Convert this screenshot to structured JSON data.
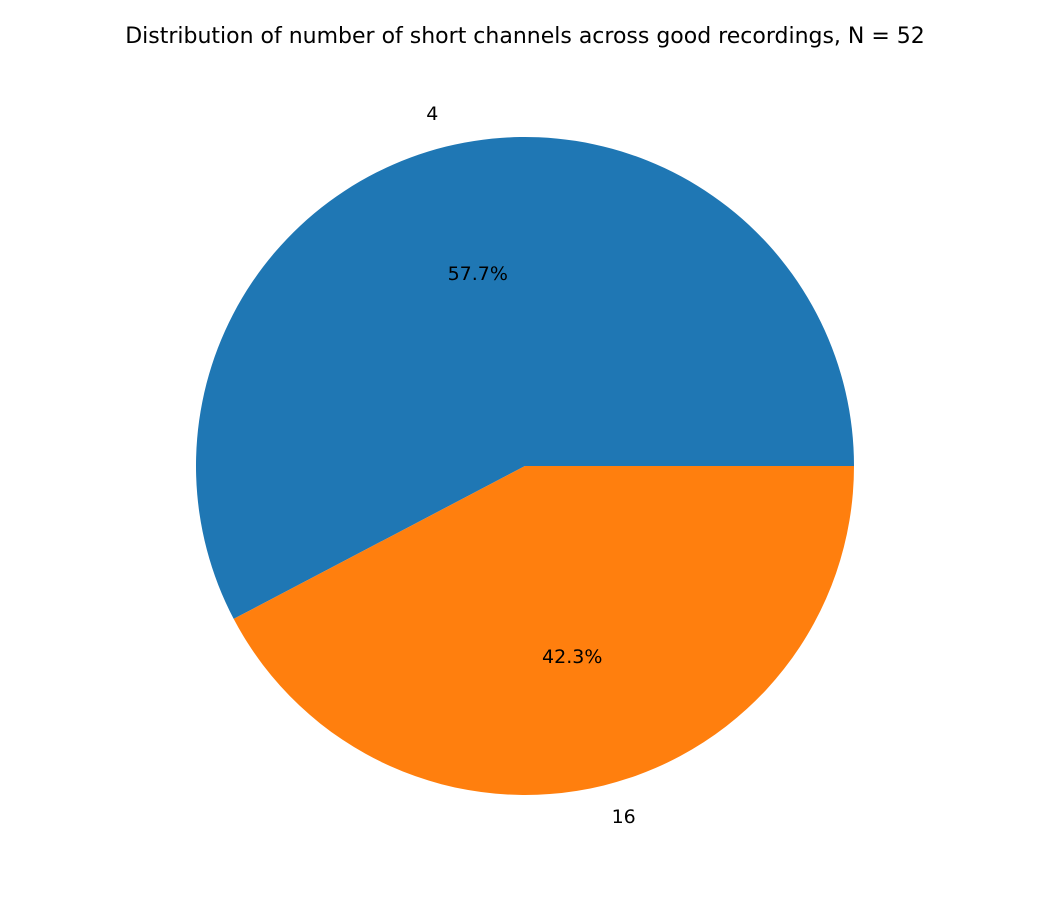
{
  "chart_data": {
    "type": "pie",
    "title": "Distribution of number of short channels across good recordings, N = 52",
    "categories": [
      "4",
      "16"
    ],
    "values": [
      30,
      22
    ],
    "percentages": [
      "57.7%",
      "42.3%"
    ],
    "colors": [
      "#1f77b4",
      "#ff7f0e"
    ],
    "start_angle_deg": 0,
    "direction": "counterclockwise",
    "legend": "none"
  }
}
